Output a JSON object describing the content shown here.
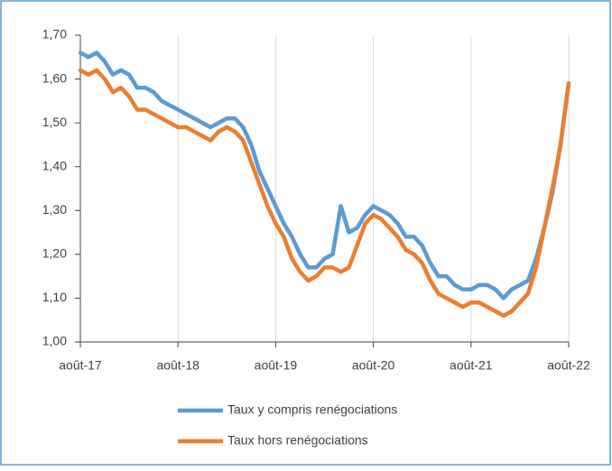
{
  "chart_data": {
    "type": "line",
    "categories": [
      "août-17",
      null,
      null,
      null,
      null,
      null,
      null,
      null,
      null,
      null,
      null,
      null,
      "août-18",
      null,
      null,
      null,
      null,
      null,
      null,
      null,
      null,
      null,
      null,
      null,
      "août-19",
      null,
      null,
      null,
      null,
      null,
      null,
      null,
      null,
      null,
      null,
      null,
      "août-20",
      null,
      null,
      null,
      null,
      null,
      null,
      null,
      null,
      null,
      null,
      null,
      "août-21",
      null,
      null,
      null,
      null,
      null,
      null,
      null,
      null,
      null,
      null,
      null,
      "août-22"
    ],
    "series": [
      {
        "name": "Taux y compris renégociations",
        "color": "#5b9bd5",
        "values": [
          1.66,
          1.65,
          1.66,
          1.64,
          1.61,
          1.62,
          1.61,
          1.58,
          1.58,
          1.57,
          1.55,
          1.54,
          1.53,
          1.52,
          1.51,
          1.5,
          1.49,
          1.5,
          1.51,
          1.51,
          1.49,
          1.45,
          1.39,
          1.35,
          1.31,
          1.27,
          1.24,
          1.2,
          1.17,
          1.17,
          1.19,
          1.2,
          1.31,
          1.25,
          1.26,
          1.29,
          1.31,
          1.3,
          1.29,
          1.27,
          1.24,
          1.24,
          1.22,
          1.18,
          1.15,
          1.15,
          1.13,
          1.12,
          1.12,
          1.13,
          1.13,
          1.12,
          1.1,
          1.12,
          1.13,
          1.14,
          1.19,
          1.26,
          1.34,
          1.45,
          1.59
        ]
      },
      {
        "name": "Taux hors renégociations",
        "color": "#ed7d31",
        "values": [
          1.62,
          1.61,
          1.62,
          1.6,
          1.57,
          1.58,
          1.56,
          1.53,
          1.53,
          1.52,
          1.51,
          1.5,
          1.49,
          1.49,
          1.48,
          1.47,
          1.46,
          1.48,
          1.49,
          1.48,
          1.46,
          1.41,
          1.36,
          1.31,
          1.27,
          1.24,
          1.19,
          1.16,
          1.14,
          1.15,
          1.17,
          1.17,
          1.16,
          1.17,
          1.22,
          1.27,
          1.29,
          1.28,
          1.26,
          1.24,
          1.21,
          1.2,
          1.18,
          1.14,
          1.11,
          1.1,
          1.09,
          1.08,
          1.09,
          1.09,
          1.08,
          1.07,
          1.06,
          1.07,
          1.09,
          1.11,
          1.17,
          1.26,
          1.35,
          1.45,
          1.59
        ]
      }
    ],
    "ylim": [
      1.0,
      1.7
    ],
    "yticks": [
      {
        "value": 1.0,
        "label": "1,00"
      },
      {
        "value": 1.1,
        "label": "1,10"
      },
      {
        "value": 1.2,
        "label": "1,20"
      },
      {
        "value": 1.3,
        "label": "1,30"
      },
      {
        "value": 1.4,
        "label": "1,40"
      },
      {
        "value": 1.5,
        "label": "1,50"
      },
      {
        "value": 1.6,
        "label": "1,60"
      },
      {
        "value": 1.7,
        "label": "1,70"
      }
    ],
    "grid": "x",
    "legend": "bottom"
  }
}
